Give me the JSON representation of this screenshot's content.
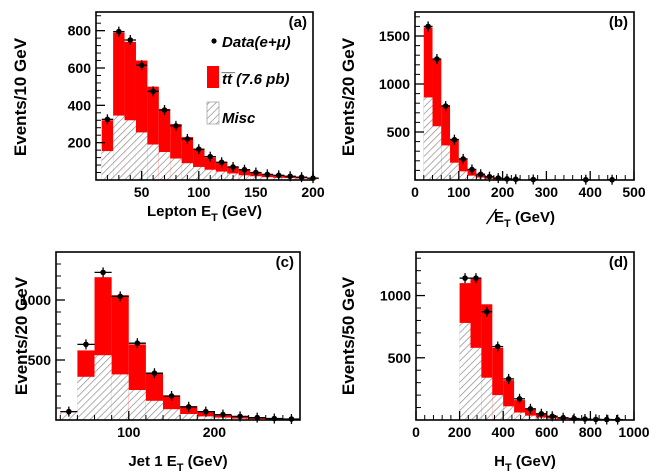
{
  "colors": {
    "ttbar": "#ff0000",
    "misc_stroke": "#8c8c8c",
    "data": "#000000"
  },
  "legend": {
    "data_label": "Data(e+μ)",
    "ttbar_label": "t̅t̅ (7.6 pb)",
    "misc_label": "Misc"
  },
  "chart_data": [
    {
      "type": "bar",
      "panel_label": "(a)",
      "xlabel": "Lepton E",
      "xlabel_sub": "T",
      "xlabel_suffix": "  (GeV)",
      "ylabel": "Events/10 GeV",
      "xlim": [
        10,
        200
      ],
      "ylim": [
        0,
        900
      ],
      "xticks": [
        50,
        100,
        150,
        200
      ],
      "xticklabels": [
        "50",
        "100",
        "150",
        "200"
      ],
      "yticks": [
        200,
        400,
        600,
        800
      ],
      "yticklabels": [
        "200",
        "400",
        "600",
        "800"
      ],
      "bins": [
        {
          "lo": 15,
          "hi": 25,
          "misc": 155,
          "total": 320
        },
        {
          "lo": 25,
          "hi": 35,
          "misc": 345,
          "total": 790
        },
        {
          "lo": 35,
          "hi": 45,
          "misc": 320,
          "total": 740
        },
        {
          "lo": 45,
          "hi": 55,
          "misc": 255,
          "total": 640
        },
        {
          "lo": 55,
          "hi": 65,
          "misc": 190,
          "total": 500
        },
        {
          "lo": 65,
          "hi": 75,
          "misc": 150,
          "total": 380
        },
        {
          "lo": 75,
          "hi": 85,
          "misc": 115,
          "total": 300
        },
        {
          "lo": 85,
          "hi": 95,
          "misc": 90,
          "total": 230
        },
        {
          "lo": 95,
          "hi": 105,
          "misc": 70,
          "total": 165
        },
        {
          "lo": 105,
          "hi": 115,
          "misc": 55,
          "total": 120
        },
        {
          "lo": 115,
          "hi": 125,
          "misc": 45,
          "total": 95
        },
        {
          "lo": 125,
          "hi": 135,
          "misc": 35,
          "total": 70
        },
        {
          "lo": 135,
          "hi": 145,
          "misc": 25,
          "total": 55
        },
        {
          "lo": 145,
          "hi": 155,
          "misc": 20,
          "total": 40
        },
        {
          "lo": 155,
          "hi": 165,
          "misc": 15,
          "total": 30
        },
        {
          "lo": 165,
          "hi": 175,
          "misc": 12,
          "total": 25
        },
        {
          "lo": 175,
          "hi": 185,
          "misc": 10,
          "total": 20
        },
        {
          "lo": 185,
          "hi": 195,
          "misc": 8,
          "total": 15
        },
        {
          "lo": 195,
          "hi": 205,
          "misc": 6,
          "total": 12
        }
      ],
      "data_points": [
        {
          "x": 20,
          "y": 325
        },
        {
          "x": 30,
          "y": 795
        },
        {
          "x": 40,
          "y": 750
        },
        {
          "x": 50,
          "y": 615
        },
        {
          "x": 60,
          "y": 475
        },
        {
          "x": 70,
          "y": 375
        },
        {
          "x": 80,
          "y": 290
        },
        {
          "x": 90,
          "y": 220
        },
        {
          "x": 100,
          "y": 165
        },
        {
          "x": 110,
          "y": 125
        },
        {
          "x": 120,
          "y": 95
        },
        {
          "x": 130,
          "y": 70
        },
        {
          "x": 140,
          "y": 55
        },
        {
          "x": 150,
          "y": 40
        },
        {
          "x": 160,
          "y": 30
        },
        {
          "x": 170,
          "y": 25
        },
        {
          "x": 180,
          "y": 20
        },
        {
          "x": 190,
          "y": 15
        },
        {
          "x": 200,
          "y": 10
        }
      ],
      "xerr_half": 5
    },
    {
      "type": "bar",
      "panel_label": "(b)",
      "xlabel": "E",
      "xlabel_sub": "T",
      "xlabel_suffix": " (GeV)",
      "xlabel_slashed": true,
      "ylabel": "Events/20 GeV",
      "xlim": [
        0,
        500
      ],
      "ylim": [
        0,
        1750
      ],
      "xticks": [
        0,
        100,
        200,
        300,
        400,
        500
      ],
      "xticklabels": [
        "0",
        "100",
        "200",
        "300",
        "400",
        "500"
      ],
      "yticks": [
        500,
        1000,
        1500
      ],
      "yticklabels": [
        "500",
        "1000",
        "1500"
      ],
      "bins": [
        {
          "lo": 20,
          "hi": 40,
          "misc": 860,
          "total": 1590
        },
        {
          "lo": 40,
          "hi": 60,
          "misc": 560,
          "total": 1260
        },
        {
          "lo": 60,
          "hi": 80,
          "misc": 360,
          "total": 780
        },
        {
          "lo": 80,
          "hi": 100,
          "misc": 180,
          "total": 430
        },
        {
          "lo": 100,
          "hi": 120,
          "misc": 90,
          "total": 220
        },
        {
          "lo": 120,
          "hi": 140,
          "misc": 45,
          "total": 110
        },
        {
          "lo": 140,
          "hi": 160,
          "misc": 25,
          "total": 60
        },
        {
          "lo": 160,
          "hi": 180,
          "misc": 15,
          "total": 35
        },
        {
          "lo": 180,
          "hi": 200,
          "misc": 8,
          "total": 20
        },
        {
          "lo": 200,
          "hi": 220,
          "misc": 5,
          "total": 12
        },
        {
          "lo": 220,
          "hi": 240,
          "misc": 3,
          "total": 8
        },
        {
          "lo": 240,
          "hi": 260,
          "misc": 2,
          "total": 5
        },
        {
          "lo": 260,
          "hi": 280,
          "misc": 2,
          "total": 4
        },
        {
          "lo": 280,
          "hi": 300,
          "misc": 1,
          "total": 3
        }
      ],
      "data_points": [
        {
          "x": 30,
          "y": 1600
        },
        {
          "x": 50,
          "y": 1260
        },
        {
          "x": 70,
          "y": 770
        },
        {
          "x": 90,
          "y": 420
        },
        {
          "x": 110,
          "y": 220
        },
        {
          "x": 130,
          "y": 110
        },
        {
          "x": 150,
          "y": 60
        },
        {
          "x": 170,
          "y": 35
        },
        {
          "x": 190,
          "y": 20
        },
        {
          "x": 210,
          "y": 12
        },
        {
          "x": 230,
          "y": 8
        },
        {
          "x": 270,
          "y": 5
        },
        {
          "x": 390,
          "y": 3
        },
        {
          "x": 450,
          "y": 3
        }
      ],
      "xerr_half": 10
    },
    {
      "type": "bar",
      "panel_label": "(c)",
      "xlabel": "Jet 1 E",
      "xlabel_sub": "T",
      "xlabel_suffix": " (GeV)",
      "ylabel": "Events/20 GeV",
      "xlim": [
        15,
        300
      ],
      "ylim": [
        0,
        1400
      ],
      "xticks": [
        100,
        200
      ],
      "xticklabels": [
        "100",
        "200"
      ],
      "yticks": [
        500,
        1000
      ],
      "yticklabels": [
        "500",
        "1000"
      ],
      "bins": [
        {
          "lo": 20,
          "hi": 40,
          "misc": 60,
          "total": 60
        },
        {
          "lo": 40,
          "hi": 60,
          "misc": 360,
          "total": 580
        },
        {
          "lo": 60,
          "hi": 80,
          "misc": 540,
          "total": 1190
        },
        {
          "lo": 80,
          "hi": 100,
          "misc": 380,
          "total": 1040
        },
        {
          "lo": 100,
          "hi": 120,
          "misc": 250,
          "total": 630
        },
        {
          "lo": 120,
          "hi": 140,
          "misc": 160,
          "total": 390
        },
        {
          "lo": 140,
          "hi": 160,
          "misc": 90,
          "total": 200
        },
        {
          "lo": 160,
          "hi": 180,
          "misc": 50,
          "total": 110
        },
        {
          "lo": 180,
          "hi": 200,
          "misc": 30,
          "total": 70
        },
        {
          "lo": 200,
          "hi": 220,
          "misc": 20,
          "total": 45
        },
        {
          "lo": 220,
          "hi": 240,
          "misc": 12,
          "total": 30
        },
        {
          "lo": 240,
          "hi": 260,
          "misc": 8,
          "total": 20
        },
        {
          "lo": 260,
          "hi": 280,
          "misc": 5,
          "total": 12
        }
      ],
      "data_points": [
        {
          "x": 30,
          "y": 70
        },
        {
          "x": 50,
          "y": 630
        },
        {
          "x": 70,
          "y": 1230
        },
        {
          "x": 90,
          "y": 1030
        },
        {
          "x": 110,
          "y": 640
        },
        {
          "x": 130,
          "y": 390
        },
        {
          "x": 150,
          "y": 200
        },
        {
          "x": 170,
          "y": 110
        },
        {
          "x": 190,
          "y": 70
        },
        {
          "x": 210,
          "y": 45
        },
        {
          "x": 230,
          "y": 30
        },
        {
          "x": 250,
          "y": 20
        },
        {
          "x": 270,
          "y": 12
        },
        {
          "x": 290,
          "y": 8
        }
      ],
      "xerr_half": 10
    },
    {
      "type": "bar",
      "panel_label": "(d)",
      "xlabel": "H",
      "xlabel_sub": "T",
      "xlabel_suffix": " (GeV)",
      "ylabel": "Events/50 GeV",
      "xlim": [
        0,
        1000
      ],
      "ylim": [
        0,
        1350
      ],
      "xticks": [
        0,
        200,
        400,
        600,
        800,
        1000
      ],
      "xticklabels": [
        "0",
        "200",
        "400",
        "600",
        "800",
        "1000"
      ],
      "yticks": [
        500,
        1000
      ],
      "yticklabels": [
        "500",
        "1000"
      ],
      "bins": [
        {
          "lo": 200,
          "hi": 250,
          "misc": 780,
          "total": 1100
        },
        {
          "lo": 250,
          "hi": 300,
          "misc": 580,
          "total": 1140
        },
        {
          "lo": 300,
          "hi": 350,
          "misc": 340,
          "total": 930
        },
        {
          "lo": 350,
          "hi": 400,
          "misc": 200,
          "total": 580
        },
        {
          "lo": 400,
          "hi": 450,
          "misc": 110,
          "total": 320
        },
        {
          "lo": 450,
          "hi": 500,
          "misc": 60,
          "total": 160
        },
        {
          "lo": 500,
          "hi": 550,
          "misc": 35,
          "total": 90
        },
        {
          "lo": 550,
          "hi": 600,
          "misc": 20,
          "total": 50
        },
        {
          "lo": 600,
          "hi": 650,
          "misc": 12,
          "total": 30
        },
        {
          "lo": 650,
          "hi": 700,
          "misc": 8,
          "total": 18
        },
        {
          "lo": 700,
          "hi": 750,
          "misc": 5,
          "total": 12
        },
        {
          "lo": 750,
          "hi": 800,
          "misc": 3,
          "total": 8
        },
        {
          "lo": 800,
          "hi": 850,
          "misc": 2,
          "total": 5
        },
        {
          "lo": 850,
          "hi": 900,
          "misc": 2,
          "total": 4
        },
        {
          "lo": 900,
          "hi": 950,
          "misc": 1,
          "total": 3
        }
      ],
      "data_points": [
        {
          "x": 225,
          "y": 1140
        },
        {
          "x": 275,
          "y": 1140
        },
        {
          "x": 325,
          "y": 870
        },
        {
          "x": 375,
          "y": 590
        },
        {
          "x": 425,
          "y": 330
        },
        {
          "x": 475,
          "y": 170
        },
        {
          "x": 525,
          "y": 90
        },
        {
          "x": 575,
          "y": 50
        },
        {
          "x": 625,
          "y": 30
        },
        {
          "x": 675,
          "y": 18
        },
        {
          "x": 725,
          "y": 12
        },
        {
          "x": 775,
          "y": 8
        },
        {
          "x": 825,
          "y": 5
        },
        {
          "x": 875,
          "y": 4
        },
        {
          "x": 925,
          "y": 3
        }
      ],
      "xerr_half": 25
    }
  ]
}
